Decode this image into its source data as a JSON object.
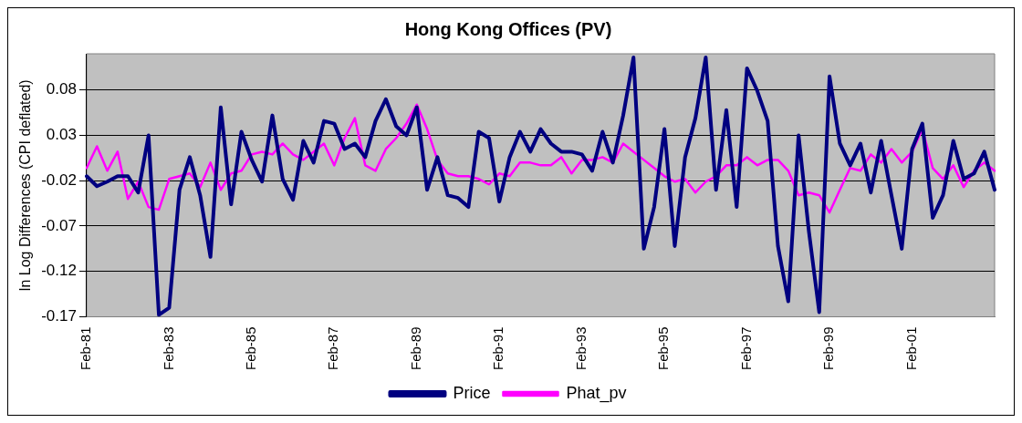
{
  "chart_data": {
    "type": "line",
    "title": "Hong Kong Offices (PV)",
    "ylabel": "ln Log Differences (CPI deflated)",
    "categories": [
      "Feb-81",
      null,
      null,
      null,
      null,
      null,
      null,
      null,
      "Feb-83",
      null,
      null,
      null,
      null,
      null,
      null,
      null,
      "Feb-85",
      null,
      null,
      null,
      null,
      null,
      null,
      null,
      "Feb-87",
      null,
      null,
      null,
      null,
      null,
      null,
      null,
      "Feb-89",
      null,
      null,
      null,
      null,
      null,
      null,
      null,
      "Feb-91",
      null,
      null,
      null,
      null,
      null,
      null,
      null,
      "Feb-93",
      null,
      null,
      null,
      null,
      null,
      null,
      null,
      "Feb-95",
      null,
      null,
      null,
      null,
      null,
      null,
      null,
      "Feb-97",
      null,
      null,
      null,
      null,
      null,
      null,
      null,
      "Feb-99",
      null,
      null,
      null,
      null,
      null,
      null,
      null,
      "Feb-01",
      null,
      null,
      null,
      null,
      null,
      null,
      null,
      null
    ],
    "series": [
      {
        "name": "Price",
        "color": "#000080",
        "values": [
          -0.015,
          -0.026,
          -0.021,
          -0.015,
          -0.015,
          -0.033,
          0.03,
          -0.168,
          -0.16,
          -0.03,
          0.006,
          -0.036,
          -0.104,
          0.061,
          -0.046,
          0.034,
          0.003,
          -0.021,
          0.052,
          -0.018,
          -0.041,
          0.024,
          0.0,
          0.046,
          0.043,
          0.015,
          0.021,
          0.006,
          0.046,
          0.07,
          0.04,
          0.03,
          0.061,
          -0.03,
          0.006,
          -0.036,
          -0.039,
          -0.049,
          0.034,
          0.027,
          -0.043,
          0.006,
          0.034,
          0.012,
          0.037,
          0.021,
          0.012,
          0.012,
          0.009,
          -0.009,
          0.034,
          0.0,
          0.052,
          0.116,
          -0.095,
          -0.049,
          0.037,
          -0.092,
          0.006,
          0.049,
          0.116,
          -0.03,
          0.058,
          -0.049,
          0.104,
          0.079,
          0.046,
          -0.092,
          -0.153,
          0.03,
          -0.076,
          -0.165,
          0.095,
          0.021,
          -0.003,
          0.021,
          -0.033,
          0.024,
          -0.036,
          -0.095,
          0.015,
          0.043,
          -0.061,
          -0.036,
          0.024,
          -0.018,
          -0.012,
          0.012,
          -0.03
        ]
      },
      {
        "name": "Phat_pv",
        "color": "#ff00ff",
        "values": [
          -0.006,
          0.018,
          -0.009,
          0.012,
          -0.04,
          -0.021,
          -0.049,
          -0.052,
          -0.018,
          -0.015,
          -0.012,
          -0.027,
          0.0,
          -0.03,
          -0.012,
          -0.009,
          0.009,
          0.012,
          0.009,
          0.021,
          0.009,
          0.003,
          0.012,
          0.021,
          -0.003,
          0.027,
          0.049,
          -0.003,
          -0.009,
          0.015,
          0.027,
          0.043,
          0.064,
          0.037,
          0.003,
          -0.012,
          -0.015,
          -0.015,
          -0.018,
          -0.024,
          -0.012,
          -0.015,
          0.0,
          0.0,
          -0.003,
          -0.003,
          0.006,
          -0.012,
          0.003,
          0.003,
          0.006,
          0.0,
          0.021,
          0.012,
          0.003,
          -0.006,
          -0.015,
          -0.021,
          -0.018,
          -0.033,
          -0.021,
          -0.015,
          -0.003,
          -0.003,
          0.006,
          -0.003,
          0.003,
          0.003,
          -0.009,
          -0.036,
          -0.033,
          -0.036,
          -0.055,
          -0.03,
          -0.006,
          -0.009,
          0.009,
          0.0,
          0.015,
          0.0,
          0.012,
          0.037,
          -0.006,
          -0.018,
          -0.003,
          -0.027,
          -0.009,
          0.0,
          -0.009
        ]
      }
    ],
    "ylim": [
      -0.17,
      0.12
    ],
    "yticks": [
      -0.17,
      -0.12,
      -0.07,
      -0.02,
      0.03,
      0.08
    ],
    "grid": "y",
    "legend": "bottom",
    "marker": "none",
    "line_style": "solid"
  }
}
